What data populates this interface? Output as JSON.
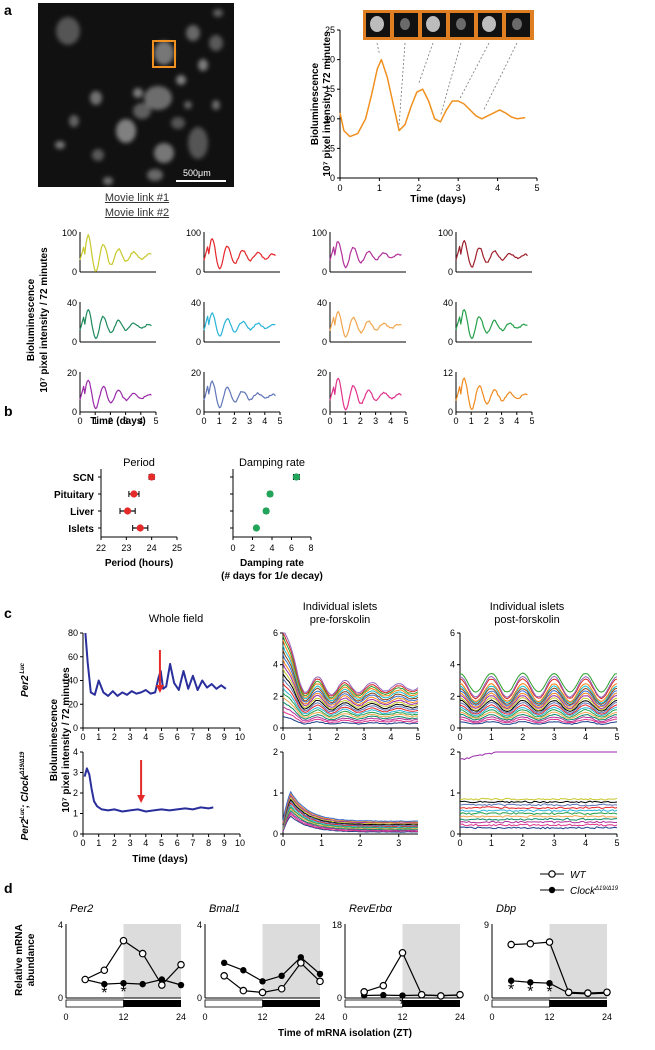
{
  "panels": {
    "a": "a",
    "b": "b",
    "c": "c",
    "d": "d"
  },
  "a": {
    "scale_bar": "500μm",
    "links": [
      "Movie link #1",
      "Movie link #2"
    ],
    "ylabel_1": "Bioluminescence",
    "ylabel_2": "10⁷ pixel intensity / 72 minutes",
    "xlabel": "Time (days)"
  },
  "b": {
    "period_title": "Period",
    "period_xlabel": "Period (hours)",
    "damp_title": "Damping rate",
    "damp_xlabel_1": "Damping rate",
    "damp_xlabel_2": "(# days for 1/e decay)"
  },
  "c": {
    "titles": [
      "Whole field",
      "Individual islets",
      "pre-forskolin",
      "Individual islets",
      "post-forskolin"
    ],
    "row_labels": [
      "Per2",
      "Luc",
      "Per2",
      "Luc",
      "; Clock",
      "Δ19/Δ19"
    ],
    "ylabel_1": "Bioluminescence",
    "ylabel_2": "10⁷ pixel intensity / 72 minutes",
    "xlabel": "Time (days)"
  },
  "d": {
    "genes": [
      "Per2",
      "Bmal1",
      "RevErbα",
      "Dbp"
    ],
    "legend": [
      "WT",
      "Clock",
      "Δ19/Δ19"
    ],
    "ylabel_1": "Relative mRNA",
    "ylabel_2": "abundance",
    "xlabel": "Time of mRNA isolation (ZT)"
  },
  "chart_data": [
    {
      "type": "line",
      "panel": "a-main",
      "xlabel": "Time (days)",
      "ylabel": "Bioluminescence 10⁷ pixel intensity / 72 minutes",
      "xlim": [
        0,
        5
      ],
      "ylim": [
        0,
        25
      ],
      "xticks": [
        "0",
        "1",
        "2",
        "3",
        "4",
        "5"
      ],
      "yticks": [
        "0",
        "5",
        "10",
        "15",
        "20",
        "25"
      ],
      "x": [
        0,
        0.1,
        0.25,
        0.45,
        0.65,
        0.8,
        0.95,
        1.05,
        1.2,
        1.35,
        1.5,
        1.65,
        1.8,
        1.95,
        2.1,
        2.25,
        2.4,
        2.55,
        2.7,
        2.85,
        3.0,
        3.15,
        3.3,
        3.45,
        3.6,
        3.75,
        3.9,
        4.05,
        4.2,
        4.35,
        4.5,
        4.7
      ],
      "y": [
        11,
        8,
        7,
        7.5,
        10,
        14,
        18.5,
        20,
        17,
        12.5,
        8,
        9,
        12,
        14.5,
        15,
        13,
        10,
        9.5,
        11.5,
        13,
        13,
        12.5,
        11.5,
        10.5,
        10,
        10.5,
        11,
        11.5,
        11,
        10.3,
        10,
        10.2
      ],
      "color": "#f0901e"
    },
    {
      "type": "line",
      "panel": "a-grid",
      "xlabel": "Time (days)",
      "ylabel": "Bioluminescence 10⁷ pixel intensity / 72 minutes",
      "xticks": [
        "0",
        "1",
        "2",
        "3",
        "4",
        "5"
      ],
      "subplots": [
        {
          "color": "#c8c82a",
          "ymax": "100",
          "amp": 0.7
        },
        {
          "color": "#e5262b",
          "ymax": "100",
          "amp": 0.6
        },
        {
          "color": "#b2309a",
          "ymax": "100",
          "amp": 0.5
        },
        {
          "color": "#9d1f2a",
          "ymax": "100",
          "amp": 0.5
        },
        {
          "color": "#1d8a5d",
          "ymax": "40",
          "amp": 0.55
        },
        {
          "color": "#2ab3d8",
          "ymax": "40",
          "amp": 0.45
        },
        {
          "color": "#f2a64e",
          "ymax": "40",
          "amp": 0.5
        },
        {
          "color": "#24a04a",
          "ymax": "40",
          "amp": 0.55
        },
        {
          "color": "#9a2aa8",
          "ymax": "20",
          "amp": 0.55
        },
        {
          "color": "#6076b8",
          "ymax": "20",
          "amp": 0.5
        },
        {
          "color": "#e0348c",
          "ymax": "20",
          "amp": 0.6
        },
        {
          "color": "#f08a1e",
          "ymax": "12",
          "amp": 0.6
        }
      ]
    },
    {
      "type": "scatter",
      "panel": "b-period",
      "xlabel": "Period (hours)",
      "categories": [
        "SCN",
        "Pituitary",
        "Liver",
        "Islets"
      ],
      "values": [
        24.0,
        23.3,
        23.05,
        23.55
      ],
      "errors": [
        0.1,
        0.2,
        0.3,
        0.3
      ],
      "xlim": [
        22,
        25
      ],
      "xticks": [
        "22",
        "23",
        "24",
        "25"
      ],
      "color": "#e52a2a"
    },
    {
      "type": "scatter",
      "panel": "b-damping",
      "xlabel": "Damping rate (# days for 1/e decay)",
      "categories": [
        "SCN",
        "Pituitary",
        "Liver",
        "Islets"
      ],
      "values": [
        6.5,
        3.8,
        3.4,
        2.4
      ],
      "errors": [
        0.3,
        0.2,
        0.2,
        0.1
      ],
      "xlim": [
        0,
        8
      ],
      "xticks": [
        "0",
        "2",
        "4",
        "6",
        "8"
      ],
      "color": "#22a55a"
    },
    {
      "type": "line",
      "panel": "c-whole-wt",
      "title": "Whole field",
      "xlim": [
        0,
        10
      ],
      "ylim": [
        0,
        80
      ],
      "xticks": [
        "0",
        "1",
        "2",
        "3",
        "4",
        "5",
        "6",
        "7",
        "8",
        "9",
        "10"
      ],
      "yticks": [
        "0",
        "20",
        "40",
        "60",
        "80"
      ],
      "x": [
        0.15,
        0.3,
        0.5,
        0.75,
        1.0,
        1.3,
        1.6,
        1.9,
        2.2,
        2.5,
        2.8,
        3.1,
        3.4,
        3.7,
        4.0,
        4.3,
        4.6,
        4.8,
        4.95,
        5.1,
        5.3,
        5.55,
        5.8,
        6.1,
        6.4,
        6.7,
        7.0,
        7.3,
        7.6,
        7.9,
        8.2,
        8.5,
        8.8,
        9.1
      ],
      "y": [
        80,
        55,
        30,
        28,
        40,
        30,
        27,
        31,
        27,
        30,
        28,
        31,
        29,
        30,
        32,
        29,
        30,
        42,
        48,
        33,
        35,
        54,
        38,
        32,
        48,
        33,
        44,
        32,
        40,
        34,
        37,
        33,
        36,
        33
      ],
      "arrow_x": 4.9,
      "color": "#2a2f9c"
    },
    {
      "type": "line",
      "panel": "c-whole-clock",
      "xlim": [
        0,
        10
      ],
      "ylim": [
        0,
        4
      ],
      "xticks": [
        "0",
        "1",
        "2",
        "3",
        "4",
        "5",
        "6",
        "7",
        "8",
        "9",
        "10"
      ],
      "yticks": [
        "0",
        "1",
        "2",
        "3",
        "4"
      ],
      "x": [
        0.1,
        0.25,
        0.4,
        0.55,
        0.7,
        0.9,
        1.2,
        1.6,
        2.0,
        2.5,
        3.0,
        3.5,
        4.0,
        4.5,
        5.0,
        5.5,
        6.0,
        6.5,
        7.0,
        7.5,
        8.0,
        8.3
      ],
      "y": [
        2.8,
        3.2,
        2.9,
        2.2,
        1.6,
        1.35,
        1.2,
        1.15,
        1.2,
        1.1,
        1.15,
        1.2,
        1.1,
        1.15,
        1.2,
        1.15,
        1.2,
        1.25,
        1.2,
        1.3,
        1.25,
        1.3
      ],
      "arrow_x": 3.7,
      "color": "#2a2f9c"
    },
    {
      "type": "line",
      "panel": "c-pre-wt",
      "title": "Individual islets pre-forskolin",
      "xlim": [
        0,
        5
      ],
      "ylim": [
        0,
        6
      ],
      "xticks": [
        "0",
        "1",
        "2",
        "3",
        "4",
        "5"
      ],
      "yticks": [
        "0",
        "2",
        "4",
        "6"
      ],
      "series_count": 20
    },
    {
      "type": "line",
      "panel": "c-post-wt",
      "title": "Individual islets post-forskolin",
      "xlim": [
        0,
        5
      ],
      "ylim": [
        0,
        6
      ],
      "xticks": [
        "0",
        "1",
        "2",
        "3",
        "4",
        "5"
      ],
      "yticks": [
        "0",
        "2",
        "4",
        "6"
      ],
      "series_count": 20
    },
    {
      "type": "line",
      "panel": "c-pre-clock",
      "xlim": [
        0,
        3.5
      ],
      "ylim": [
        0,
        2
      ],
      "xticks": [
        "0",
        "1",
        "2",
        "3"
      ],
      "yticks": [
        "0",
        "1",
        "2"
      ],
      "series_count": 14
    },
    {
      "type": "line",
      "panel": "c-post-clock",
      "xlim": [
        0,
        5
      ],
      "ylim": [
        0,
        2
      ],
      "xticks": [
        "0",
        "1",
        "2",
        "3",
        "4",
        "5"
      ],
      "yticks": [
        "0",
        "1",
        "2"
      ],
      "series_count": 12
    },
    {
      "type": "line",
      "panel": "d",
      "xlabel": "Time of mRNA isolation (ZT)",
      "x": [
        4,
        8,
        12,
        16,
        20,
        24
      ],
      "xticks": [
        "0",
        "12",
        "24"
      ],
      "subplots": [
        {
          "gene": "Per2",
          "ymax": "4",
          "ymaxv": 4,
          "wt": [
            1.0,
            1.5,
            3.1,
            2.4,
            0.7,
            1.8
          ],
          "clock": [
            1.0,
            0.75,
            0.8,
            0.75,
            1.0,
            0.7
          ],
          "stars": [
            8,
            12
          ]
        },
        {
          "gene": "Bmal1",
          "ymax": "4",
          "ymaxv": 4,
          "wt": [
            1.2,
            0.4,
            0.3,
            0.5,
            1.9,
            0.9
          ],
          "clock": [
            1.9,
            1.5,
            0.9,
            1.2,
            2.2,
            1.3
          ],
          "stars": []
        },
        {
          "gene": "RevErbα",
          "ymax": "18",
          "ymaxv": 18,
          "wt": [
            1.5,
            3.0,
            11.0,
            0.8,
            0.5,
            0.8
          ],
          "clock": [
            0.6,
            0.7,
            0.6,
            0.7,
            0.6,
            0.7
          ],
          "stars": [
            12
          ]
        },
        {
          "gene": "Dbp",
          "ymax": "9",
          "ymaxv": 9,
          "wt": [
            6.5,
            6.6,
            6.8,
            0.7,
            0.6,
            0.7
          ],
          "clock": [
            2.1,
            1.9,
            1.8,
            0.6,
            0.5,
            0.6
          ],
          "stars": [
            4,
            8,
            12
          ]
        }
      ]
    }
  ]
}
